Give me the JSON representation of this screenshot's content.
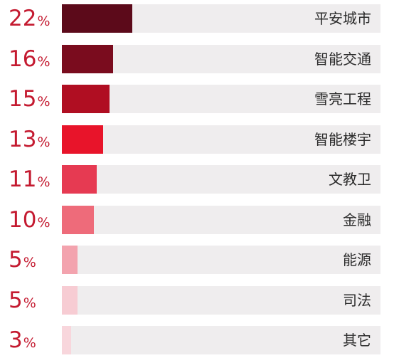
{
  "chart_data": {
    "type": "bar",
    "orientation": "horizontal",
    "categories": [
      "平安城市",
      "智能交通",
      "雪亮工程",
      "智能楼宇",
      "文教卫",
      "金融",
      "能源",
      "司法",
      "其它"
    ],
    "values": [
      22,
      16,
      15,
      13,
      11,
      10,
      5,
      5,
      3
    ],
    "value_unit": "%",
    "colors": [
      "#5c0a1a",
      "#7a0c1e",
      "#b00e22",
      "#e8142a",
      "#e63a52",
      "#ee6b7a",
      "#f3a3ae",
      "#f7ccd3",
      "#f8d6dc"
    ],
    "track_color": "#efedee",
    "label_color": "#c41a30",
    "xlim": [
      0,
      100
    ],
    "title": "",
    "xlabel": "",
    "ylabel": ""
  }
}
